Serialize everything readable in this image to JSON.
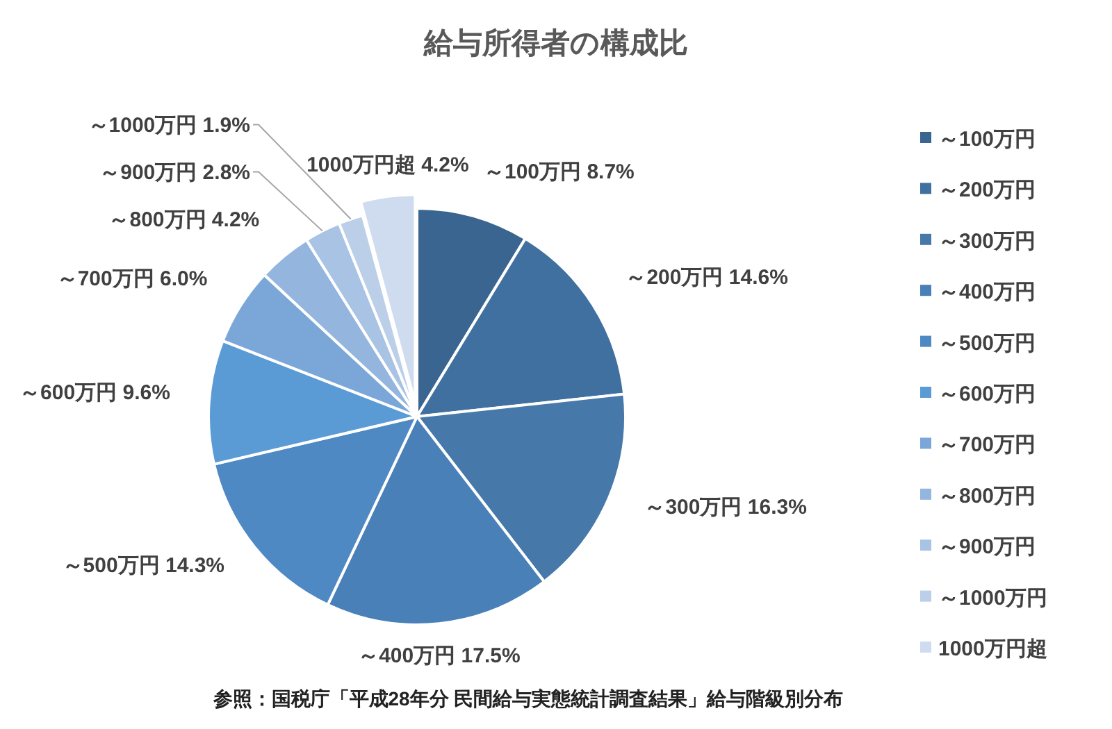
{
  "chart_data": {
    "type": "pie",
    "title": "給与所得者の構成比",
    "categories": [
      "～100万円",
      "～200万円",
      "～300万円",
      "～400万円",
      "～500万円",
      "～600万円",
      "～700万円",
      "～800万円",
      "～900万円",
      "～1000万円",
      "1000万円超"
    ],
    "values": [
      8.7,
      14.6,
      16.3,
      17.5,
      14.3,
      9.6,
      6.0,
      4.2,
      2.8,
      1.9,
      4.2
    ],
    "colors": [
      "#3b6591",
      "#40709f",
      "#4678aa",
      "#4a80b8",
      "#4f89c4",
      "#5b9bd5",
      "#7aa7d8",
      "#93b5de",
      "#a9c3e4",
      "#bccfe9",
      "#cfdcef"
    ],
    "value_labels": [
      "～100万円 8.7%",
      "～200万円 14.6%",
      "～300万円 16.3%",
      "～400万円 17.5%",
      "～500万円 14.3%",
      "～600万円 9.6%",
      "～700万円 6.0%",
      "～800万円 4.2%",
      "～900万円 2.8%",
      "～1000万円 1.9%",
      "1000万円超 4.2%"
    ],
    "legend": "right",
    "annotations": [
      "参照：国税庁「平成28年分 民間給与実態統計調査結果」給与階級別分布"
    ]
  }
}
